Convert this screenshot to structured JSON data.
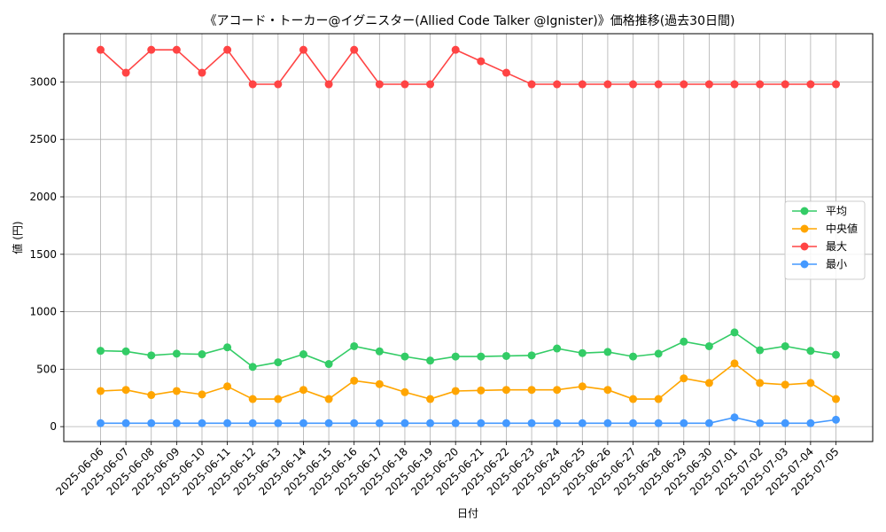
{
  "chart_data": {
    "type": "line",
    "title": "《アコード・トーカー@イグニスター(Allied Code Talker @Ignister)》価格推移(過去30日間)",
    "xlabel": "日付",
    "ylabel": "値 (円)",
    "ylim": [
      -130,
      3420
    ],
    "yticks": [
      0,
      500,
      1000,
      1500,
      2000,
      2500,
      3000
    ],
    "grid": true,
    "legend_position": "center-right",
    "categories": [
      "2025-06-06",
      "2025-06-07",
      "2025-06-08",
      "2025-06-09",
      "2025-06-10",
      "2025-06-11",
      "2025-06-12",
      "2025-06-13",
      "2025-06-14",
      "2025-06-15",
      "2025-06-16",
      "2025-06-17",
      "2025-06-18",
      "2025-06-19",
      "2025-06-20",
      "2025-06-21",
      "2025-06-22",
      "2025-06-23",
      "2025-06-24",
      "2025-06-25",
      "2025-06-26",
      "2025-06-27",
      "2025-06-28",
      "2025-06-29",
      "2025-06-30",
      "2025-07-01",
      "2025-07-02",
      "2025-07-03",
      "2025-07-04",
      "2025-07-05"
    ],
    "series": [
      {
        "name": "平均",
        "color": "#33cc66",
        "values": [
          660,
          655,
          620,
          635,
          630,
          690,
          520,
          560,
          630,
          545,
          700,
          655,
          610,
          575,
          610,
          610,
          615,
          620,
          680,
          640,
          650,
          610,
          635,
          740,
          700,
          820,
          665,
          700,
          660,
          625
        ]
      },
      {
        "name": "中央値",
        "color": "#ffa500",
        "values": [
          310,
          320,
          275,
          310,
          280,
          350,
          240,
          240,
          320,
          240,
          400,
          370,
          300,
          240,
          310,
          315,
          320,
          320,
          320,
          350,
          320,
          240,
          240,
          420,
          380,
          550,
          380,
          365,
          380,
          240
        ]
      },
      {
        "name": "最大",
        "color": "#ff4444",
        "values": [
          3280,
          3080,
          3280,
          3280,
          3080,
          3280,
          2980,
          2980,
          3280,
          2980,
          3280,
          2980,
          2980,
          2980,
          3280,
          3180,
          3080,
          2980,
          2980,
          2980,
          2980,
          2980,
          2980,
          2980,
          2980,
          2980,
          2980,
          2980,
          2980,
          2980
        ]
      },
      {
        "name": "最小",
        "color": "#4499ff",
        "values": [
          30,
          30,
          30,
          30,
          30,
          30,
          30,
          30,
          30,
          30,
          30,
          30,
          30,
          30,
          30,
          30,
          30,
          30,
          30,
          30,
          30,
          30,
          30,
          30,
          30,
          80,
          30,
          30,
          30,
          60
        ]
      }
    ]
  }
}
